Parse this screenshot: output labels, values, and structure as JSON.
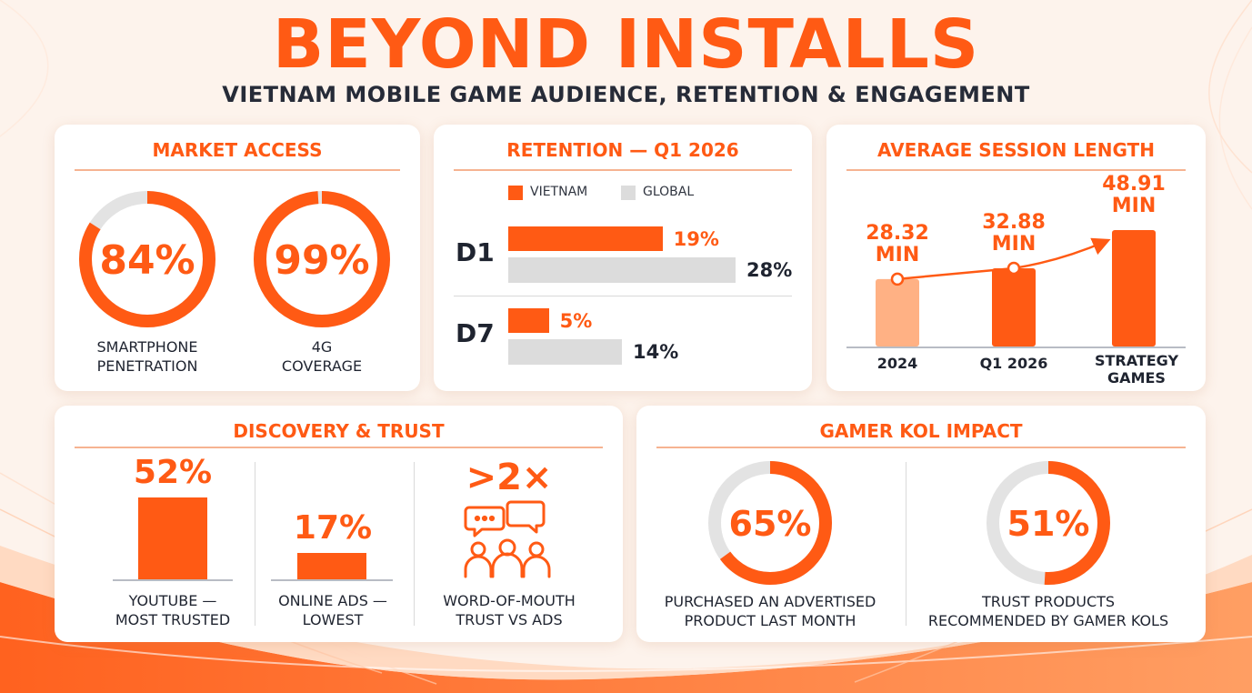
{
  "header": {
    "title": "BEYOND INSTALLS",
    "subtitle": "VIETNAM MOBILE GAME AUDIENCE, RETENTION & ENGAGEMENT"
  },
  "colors": {
    "accent": "#ff5a14",
    "accent_light": "#ffb184",
    "global_gray": "#dcdcdc",
    "text": "#1f2430"
  },
  "market_access": {
    "title": "MARKET ACCESS",
    "items": [
      {
        "value_label": "84%",
        "label_line1": "SMARTPHONE",
        "label_line2": "PENETRATION"
      },
      {
        "value_label": "99%",
        "label_line1": "4G",
        "label_line2": "COVERAGE"
      }
    ]
  },
  "retention": {
    "title": "RETENTION — Q1 2026",
    "legend": [
      "VIETNAM",
      "GLOBAL"
    ],
    "rows": [
      {
        "category": "D1",
        "vn_label": "19%",
        "global_label": "28%"
      },
      {
        "category": "D7",
        "vn_label": "5%",
        "global_label": "14%"
      }
    ]
  },
  "session": {
    "title": "AVERAGE SESSION LENGTH",
    "bars": [
      {
        "value_line1": "28.32",
        "value_line2": "MIN",
        "cat_line1": "2024",
        "cat_line2": ""
      },
      {
        "value_line1": "32.88",
        "value_line2": "MIN",
        "cat_line1": "Q1 2026",
        "cat_line2": ""
      },
      {
        "value_line1": "48.91",
        "value_line2": "MIN",
        "cat_line1": "STRATEGY",
        "cat_line2": "GAMES"
      }
    ]
  },
  "discovery": {
    "title": "DISCOVERY & TRUST",
    "items": [
      {
        "value_label": "52%",
        "label_line1": "YOUTUBE —",
        "label_line2": "MOST TRUSTED"
      },
      {
        "value_label": "17%",
        "label_line1": "ONLINE ADS —",
        "label_line2": "LOWEST"
      },
      {
        "value_label": ">2×",
        "label_line1": "WORD-OF-MOUTH",
        "label_line2": "TRUST VS ADS"
      }
    ],
    "icon": "people-chat-icon"
  },
  "kol": {
    "title": "GAMER KOL IMPACT",
    "items": [
      {
        "value_label": "65%",
        "label_line1": "PURCHASED AN ADVERTISED",
        "label_line2": "PRODUCT LAST MONTH"
      },
      {
        "value_label": "51%",
        "label_line1": "TRUST PRODUCTS",
        "label_line2": "RECOMMENDED BY GAMER KOLS"
      }
    ]
  },
  "chart_data": [
    {
      "type": "pie",
      "title": "MARKET ACCESS",
      "categories": [
        "SMARTPHONE PENETRATION",
        "4G COVERAGE"
      ],
      "values": [
        84,
        99
      ],
      "unit": "%"
    },
    {
      "type": "bar",
      "title": "RETENTION — Q1 2026",
      "orientation": "horizontal",
      "categories": [
        "D1",
        "D7"
      ],
      "series": [
        {
          "name": "VIETNAM",
          "values": [
            19,
            5
          ],
          "color": "#ff5a14"
        },
        {
          "name": "GLOBAL",
          "values": [
            28,
            14
          ],
          "color": "#dcdcdc"
        }
      ],
      "unit": "%",
      "xlim": [
        0,
        28
      ],
      "legend": "top"
    },
    {
      "type": "bar",
      "title": "AVERAGE SESSION LENGTH",
      "categories": [
        "2024",
        "Q1 2026",
        "STRATEGY GAMES"
      ],
      "values": [
        28.32,
        32.88,
        48.91
      ],
      "unit": "MIN",
      "ylim": [
        0,
        48.91
      ],
      "trend_line": true
    },
    {
      "type": "bar",
      "title": "DISCOVERY & TRUST",
      "categories": [
        "YOUTUBE — MOST TRUSTED",
        "ONLINE ADS — LOWEST"
      ],
      "values": [
        52,
        17
      ],
      "unit": "%",
      "extra": {
        "WORD-OF-MOUTH TRUST VS ADS": ">2×"
      }
    },
    {
      "type": "pie",
      "title": "GAMER KOL IMPACT",
      "categories": [
        "PURCHASED AN ADVERTISED PRODUCT LAST MONTH",
        "TRUST PRODUCTS RECOMMENDED BY GAMER KOLS"
      ],
      "values": [
        65,
        51
      ],
      "unit": "%"
    }
  ]
}
